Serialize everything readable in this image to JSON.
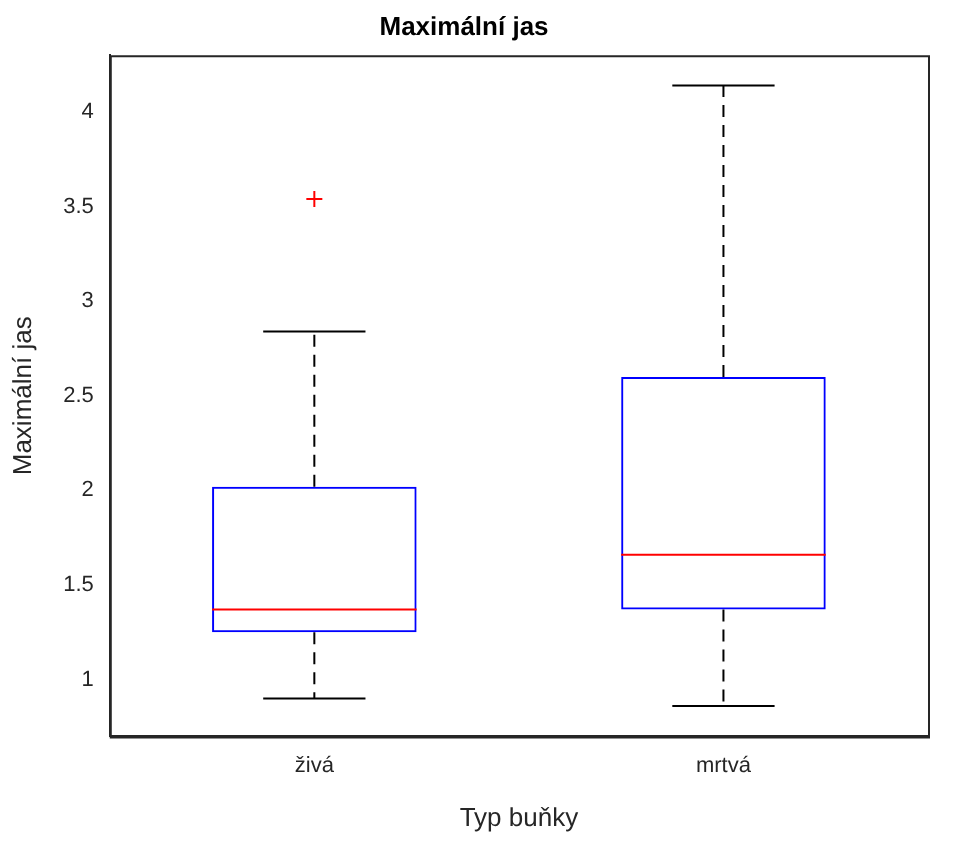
{
  "chart_data": {
    "type": "box",
    "title": "Maximální jas",
    "xlabel": "Typ buňky",
    "ylabel": "Maximální jas",
    "categories": [
      "živá",
      "mrtvá"
    ],
    "color": "#0000ff",
    "boxes": [
      {
        "low": 0.9,
        "q1": 1.25,
        "median": 1.37,
        "q3": 2.02,
        "high": 2.84,
        "outliers": [
          3.54
        ]
      },
      {
        "low": 0.86,
        "q1": 1.37,
        "median": 1.66,
        "q3": 2.6,
        "high": 4.14
      }
    ],
    "ylim": [
      0.7,
      4.3
    ],
    "yticks": [
      1,
      1.5,
      2,
      2.5,
      3,
      3.5,
      4
    ],
    "grid": false,
    "legend": false
  }
}
